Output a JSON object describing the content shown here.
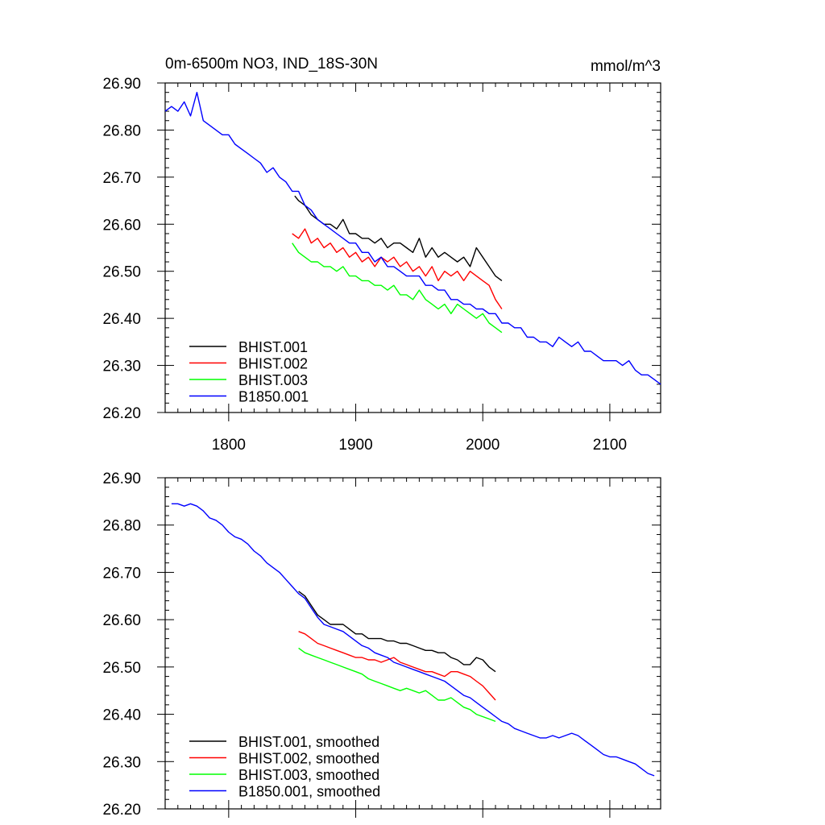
{
  "figure": {
    "title_left": "0m-6500m NO3, IND_18S-30N",
    "title_right": "mmol/m^3"
  },
  "chart_data": [
    {
      "type": "line",
      "title": "0m-6500m NO3, IND_18S-30N",
      "units": "mmol/m^3",
      "xlim": [
        1750,
        2140
      ],
      "ylim": [
        26.2,
        26.9
      ],
      "x_ticks": [
        1800,
        1900,
        2000,
        2100
      ],
      "x_tick_labels": [
        "1800",
        "1900",
        "2000",
        "2100"
      ],
      "y_ticks": [
        26.2,
        26.3,
        26.4,
        26.5,
        26.6,
        26.7,
        26.8,
        26.9
      ],
      "y_tick_labels": [
        "26.20",
        "26.30",
        "26.40",
        "26.50",
        "26.60",
        "26.70",
        "26.80",
        "26.90"
      ],
      "legend_position": "bottom-left",
      "grid": false,
      "series": [
        {
          "name": "BHIST.001",
          "color": "#000000",
          "x": [
            1852,
            1855,
            1860,
            1865,
            1870,
            1875,
            1880,
            1885,
            1890,
            1895,
            1900,
            1905,
            1910,
            1915,
            1920,
            1925,
            1930,
            1935,
            1940,
            1945,
            1950,
            1955,
            1960,
            1965,
            1970,
            1975,
            1980,
            1985,
            1990,
            1995,
            2000,
            2005,
            2010,
            2015
          ],
          "y": [
            26.66,
            26.65,
            26.64,
            26.62,
            26.61,
            26.6,
            26.6,
            26.59,
            26.61,
            26.58,
            26.58,
            26.57,
            26.57,
            26.56,
            26.57,
            26.55,
            26.56,
            26.56,
            26.55,
            26.54,
            26.57,
            26.53,
            26.55,
            26.53,
            26.54,
            26.53,
            26.52,
            26.53,
            26.51,
            26.55,
            26.53,
            26.51,
            26.49,
            26.48
          ]
        },
        {
          "name": "BHIST.002",
          "color": "#ff0000",
          "x": [
            1850,
            1855,
            1860,
            1865,
            1870,
            1875,
            1880,
            1885,
            1890,
            1895,
            1900,
            1905,
            1910,
            1915,
            1920,
            1925,
            1930,
            1935,
            1940,
            1945,
            1950,
            1955,
            1960,
            1965,
            1970,
            1975,
            1980,
            1985,
            1990,
            1995,
            2000,
            2005,
            2010,
            2015
          ],
          "y": [
            26.58,
            26.57,
            26.59,
            26.56,
            26.57,
            26.55,
            26.56,
            26.54,
            26.55,
            26.53,
            26.54,
            26.52,
            26.53,
            26.51,
            26.53,
            26.52,
            26.53,
            26.51,
            26.52,
            26.5,
            26.51,
            26.49,
            26.51,
            26.48,
            26.5,
            26.49,
            26.5,
            26.48,
            26.5,
            26.49,
            26.48,
            26.47,
            26.44,
            26.42
          ]
        },
        {
          "name": "BHIST.003",
          "color": "#00ff00",
          "x": [
            1850,
            1855,
            1860,
            1865,
            1870,
            1875,
            1880,
            1885,
            1890,
            1895,
            1900,
            1905,
            1910,
            1915,
            1920,
            1925,
            1930,
            1935,
            1940,
            1945,
            1950,
            1955,
            1960,
            1965,
            1970,
            1975,
            1980,
            1985,
            1990,
            1995,
            2000,
            2005,
            2010,
            2015
          ],
          "y": [
            26.56,
            26.54,
            26.53,
            26.52,
            26.52,
            26.51,
            26.51,
            26.5,
            26.51,
            26.49,
            26.49,
            26.48,
            26.48,
            26.47,
            26.47,
            26.46,
            26.47,
            26.45,
            26.45,
            26.44,
            26.46,
            26.44,
            26.43,
            26.42,
            26.43,
            26.41,
            26.43,
            26.42,
            26.41,
            26.4,
            26.41,
            26.39,
            26.38,
            26.37
          ]
        },
        {
          "name": "B1850.001",
          "color": "#0000ff",
          "x": [
            1750,
            1755,
            1760,
            1765,
            1770,
            1775,
            1780,
            1785,
            1790,
            1795,
            1800,
            1805,
            1810,
            1815,
            1820,
            1825,
            1830,
            1835,
            1840,
            1845,
            1850,
            1855,
            1860,
            1865,
            1870,
            1875,
            1880,
            1885,
            1890,
            1895,
            1900,
            1905,
            1910,
            1915,
            1920,
            1925,
            1930,
            1935,
            1940,
            1945,
            1950,
            1955,
            1960,
            1965,
            1970,
            1975,
            1980,
            1985,
            1990,
            1995,
            2000,
            2005,
            2010,
            2015,
            2020,
            2025,
            2030,
            2035,
            2040,
            2045,
            2050,
            2055,
            2060,
            2065,
            2070,
            2075,
            2080,
            2085,
            2090,
            2095,
            2100,
            2105,
            2110,
            2115,
            2120,
            2125,
            2130,
            2135,
            2140
          ],
          "y": [
            26.84,
            26.85,
            26.84,
            26.86,
            26.83,
            26.88,
            26.82,
            26.81,
            26.8,
            26.79,
            26.79,
            26.77,
            26.76,
            26.75,
            26.74,
            26.73,
            26.71,
            26.72,
            26.7,
            26.69,
            26.67,
            26.67,
            26.64,
            26.63,
            26.61,
            26.6,
            26.59,
            26.58,
            26.57,
            26.56,
            26.56,
            26.54,
            26.54,
            26.52,
            26.53,
            26.51,
            26.51,
            26.5,
            26.49,
            26.49,
            26.49,
            26.47,
            26.47,
            26.46,
            26.46,
            26.44,
            26.44,
            26.43,
            26.43,
            26.42,
            26.42,
            26.41,
            26.41,
            26.39,
            26.39,
            26.38,
            26.38,
            26.36,
            26.36,
            26.35,
            26.35,
            26.34,
            26.36,
            26.35,
            26.34,
            26.35,
            26.33,
            26.33,
            26.32,
            26.31,
            26.31,
            26.31,
            26.3,
            26.31,
            26.29,
            26.28,
            26.28,
            26.27,
            26.26
          ]
        }
      ]
    },
    {
      "type": "line",
      "xlim": [
        1750,
        2140
      ],
      "ylim": [
        26.2,
        26.9
      ],
      "x_ticks": [
        1800,
        1900,
        2000,
        2100
      ],
      "y_ticks": [
        26.2,
        26.3,
        26.4,
        26.5,
        26.6,
        26.7,
        26.8,
        26.9
      ],
      "y_tick_labels": [
        "26.20",
        "26.30",
        "26.40",
        "26.50",
        "26.60",
        "26.70",
        "26.80",
        "26.90"
      ],
      "legend_position": "bottom-left",
      "grid": false,
      "series": [
        {
          "name": "BHIST.001, smoothed",
          "color": "#000000",
          "x": [
            1855,
            1860,
            1865,
            1870,
            1875,
            1880,
            1885,
            1890,
            1895,
            1900,
            1905,
            1910,
            1915,
            1920,
            1925,
            1930,
            1935,
            1940,
            1945,
            1950,
            1955,
            1960,
            1965,
            1970,
            1975,
            1980,
            1985,
            1990,
            1995,
            2000,
            2005,
            2010
          ],
          "y": [
            26.66,
            26.65,
            26.63,
            26.61,
            26.6,
            26.59,
            26.59,
            26.59,
            26.58,
            26.57,
            26.57,
            26.56,
            26.56,
            26.56,
            26.555,
            26.555,
            26.55,
            26.55,
            26.545,
            26.54,
            26.535,
            26.535,
            26.53,
            26.53,
            26.52,
            26.515,
            26.505,
            26.505,
            26.52,
            26.515,
            26.5,
            26.49
          ]
        },
        {
          "name": "BHIST.002, smoothed",
          "color": "#ff0000",
          "x": [
            1855,
            1860,
            1865,
            1870,
            1875,
            1880,
            1885,
            1890,
            1895,
            1900,
            1905,
            1910,
            1915,
            1920,
            1925,
            1930,
            1935,
            1940,
            1945,
            1950,
            1955,
            1960,
            1965,
            1970,
            1975,
            1980,
            1985,
            1990,
            1995,
            2000,
            2005,
            2010
          ],
          "y": [
            26.575,
            26.57,
            26.56,
            26.55,
            26.545,
            26.54,
            26.535,
            26.53,
            26.525,
            26.52,
            26.52,
            26.515,
            26.515,
            26.51,
            26.515,
            26.52,
            26.51,
            26.505,
            26.5,
            26.495,
            26.49,
            26.49,
            26.485,
            26.48,
            26.49,
            26.49,
            26.485,
            26.48,
            26.47,
            26.46,
            26.445,
            26.43
          ]
        },
        {
          "name": "BHIST.003, smoothed",
          "color": "#00ff00",
          "x": [
            1855,
            1860,
            1865,
            1870,
            1875,
            1880,
            1885,
            1890,
            1895,
            1900,
            1905,
            1910,
            1915,
            1920,
            1925,
            1930,
            1935,
            1940,
            1945,
            1950,
            1955,
            1960,
            1965,
            1970,
            1975,
            1980,
            1985,
            1990,
            1995,
            2000,
            2005,
            2010
          ],
          "y": [
            26.54,
            26.53,
            26.525,
            26.52,
            26.515,
            26.51,
            26.505,
            26.5,
            26.495,
            26.49,
            26.485,
            26.475,
            26.47,
            26.465,
            26.46,
            26.455,
            26.45,
            26.455,
            26.45,
            26.445,
            26.45,
            26.44,
            26.43,
            26.43,
            26.435,
            26.425,
            26.415,
            26.41,
            26.4,
            26.395,
            26.39,
            26.385
          ]
        },
        {
          "name": "B1850.001, smoothed",
          "color": "#0000ff",
          "x": [
            1755,
            1760,
            1765,
            1770,
            1775,
            1780,
            1785,
            1790,
            1795,
            1800,
            1805,
            1810,
            1815,
            1820,
            1825,
            1830,
            1835,
            1840,
            1845,
            1850,
            1855,
            1860,
            1865,
            1870,
            1875,
            1880,
            1885,
            1890,
            1895,
            1900,
            1905,
            1910,
            1915,
            1920,
            1925,
            1930,
            1935,
            1940,
            1945,
            1950,
            1955,
            1960,
            1965,
            1970,
            1975,
            1980,
            1985,
            1990,
            1995,
            2000,
            2005,
            2010,
            2015,
            2020,
            2025,
            2030,
            2035,
            2040,
            2045,
            2050,
            2055,
            2060,
            2065,
            2070,
            2075,
            2080,
            2085,
            2090,
            2095,
            2100,
            2105,
            2110,
            2115,
            2120,
            2125,
            2130,
            2135
          ],
          "y": [
            26.845,
            26.845,
            26.84,
            26.845,
            26.84,
            26.83,
            26.815,
            26.81,
            26.8,
            26.785,
            26.775,
            26.77,
            26.76,
            26.745,
            26.735,
            26.72,
            26.71,
            26.7,
            26.685,
            26.67,
            26.655,
            26.645,
            26.625,
            26.605,
            26.59,
            26.585,
            26.58,
            26.575,
            26.565,
            26.555,
            26.545,
            26.54,
            26.53,
            26.525,
            26.52,
            26.51,
            26.505,
            26.5,
            26.495,
            26.49,
            26.485,
            26.48,
            26.475,
            26.47,
            26.46,
            26.45,
            26.44,
            26.435,
            26.425,
            26.415,
            26.405,
            26.395,
            26.385,
            26.38,
            26.37,
            26.365,
            26.36,
            26.355,
            26.35,
            26.35,
            26.355,
            26.35,
            26.355,
            26.36,
            26.355,
            26.345,
            26.335,
            26.325,
            26.315,
            26.31,
            26.31,
            26.305,
            26.3,
            26.295,
            26.285,
            26.275,
            26.27
          ]
        }
      ]
    }
  ]
}
